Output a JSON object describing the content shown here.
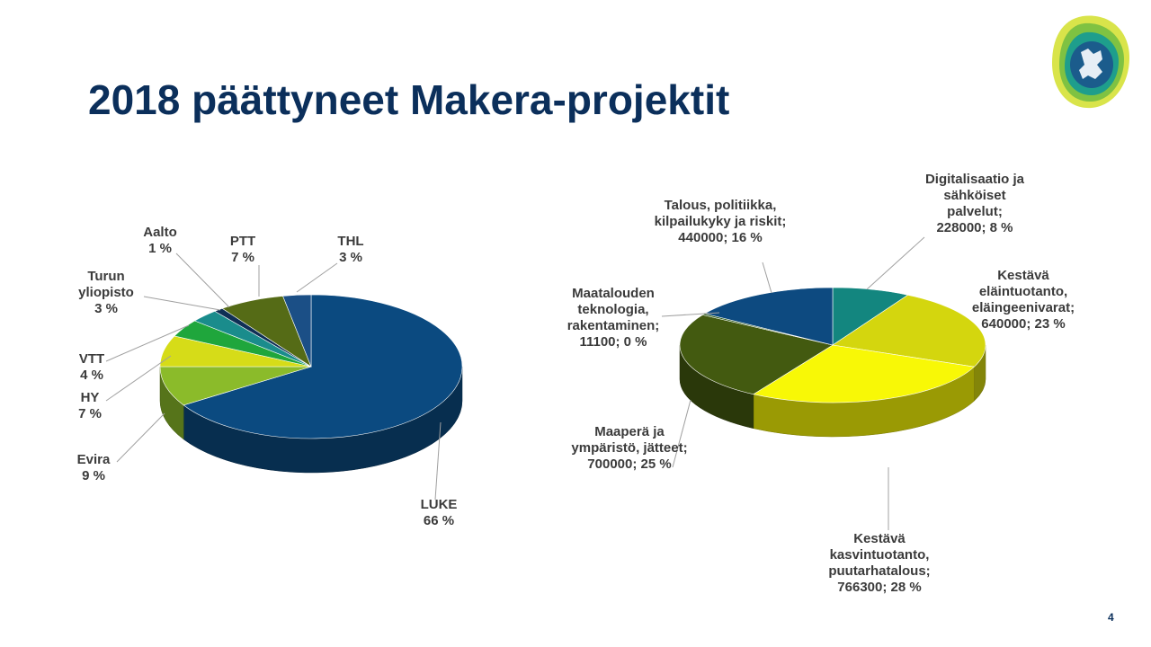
{
  "slide": {
    "title": "2018 päättyneet Makera-projektit",
    "page_number": "4"
  },
  "chart_data": [
    {
      "type": "pie",
      "title": "",
      "slices": [
        {
          "label": "LUKE",
          "label_lines": [
            "LUKE",
            "66 %"
          ],
          "value": 66,
          "color": "#0b4a80"
        },
        {
          "label": "Evira",
          "label_lines": [
            "Evira",
            "9 %"
          ],
          "value": 9,
          "color": "#8bbb2a"
        },
        {
          "label": "HY",
          "label_lines": [
            "HY",
            "7 %"
          ],
          "value": 7,
          "color": "#d6dc18"
        },
        {
          "label": "VTT",
          "label_lines": [
            "VTT",
            "4 %"
          ],
          "value": 4,
          "color": "#1fa63c"
        },
        {
          "label": "Turun yliopisto",
          "label_lines": [
            "Turun",
            "yliopisto",
            "3 %"
          ],
          "value": 3,
          "color": "#1a8c8c"
        },
        {
          "label": "Aalto",
          "label_lines": [
            "Aalto",
            "1 %"
          ],
          "value": 1,
          "color": "#0f2f55"
        },
        {
          "label": "PTT",
          "label_lines": [
            "PTT",
            "7 %"
          ],
          "value": 7,
          "color": "#556b16"
        },
        {
          "label": "THL",
          "label_lines": [
            "THL",
            "3 %"
          ],
          "value": 3,
          "color": "#1b4f86"
        }
      ]
    },
    {
      "type": "pie",
      "title": "",
      "slices": [
        {
          "label": "Digitalisaatio ja sähköiset palvelut",
          "label_lines": [
            "Digitalisaatio ja",
            "sähköiset",
            "palvelut;",
            "228000; 8 %"
          ],
          "value": 228000,
          "percent": 8,
          "color": "#13867f"
        },
        {
          "label": "Kestävä eläintuotanto, eläingeenivarat",
          "label_lines": [
            "Kestävä",
            "eläintuotanto,",
            "eläingeenivarat;",
            "640000; 23 %"
          ],
          "value": 640000,
          "percent": 23,
          "color": "#d4d60e"
        },
        {
          "label": "Kestävä kasvintuotanto, puutarhatalous",
          "label_lines": [
            "Kestävä",
            "kasvintuotanto,",
            "puutarhatalous;",
            "766300; 28 %"
          ],
          "value": 766300,
          "percent": 28,
          "color": "#f8f806"
        },
        {
          "label": "Maaperä ja ympäristö, jätteet",
          "label_lines": [
            "Maaperä ja",
            "ympäristö, jätteet;",
            "700000; 25 %"
          ],
          "value": 700000,
          "percent": 25,
          "color": "#435a10"
        },
        {
          "label": "Maatalouden teknologia, rakentaminen",
          "label_lines": [
            "Maatalouden",
            "teknologia,",
            "rakentaminen;",
            "11100; 0 %"
          ],
          "value": 11100,
          "percent": 0,
          "color": "#2c5a1a"
        },
        {
          "label": "Talous, politiikka, kilpailukyky ja riskit",
          "label_lines": [
            "Talous, politiikka,",
            "kilpailukyky ja riskit;",
            "440000; 16 %"
          ],
          "value": 440000,
          "percent": 16,
          "color": "#0d4a80"
        }
      ]
    }
  ]
}
